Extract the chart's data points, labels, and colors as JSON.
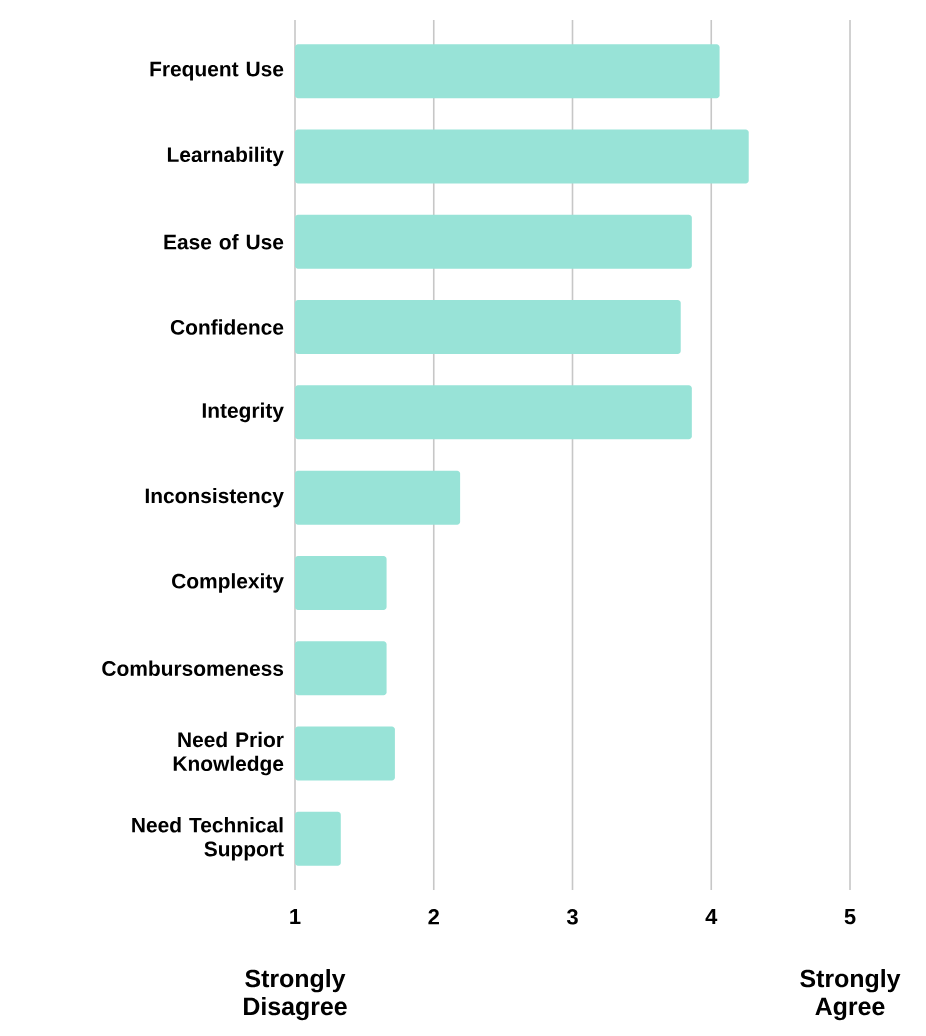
{
  "chart_data": {
    "type": "bar",
    "orientation": "horizontal",
    "categories": [
      "Frequent Use",
      "Learnability",
      "Ease of Use",
      "Confidence",
      "Integrity",
      "Inconsistency",
      "Complexity",
      "Combursomeness",
      "Need Prior Knowledge",
      "Need Technical Support"
    ],
    "values": [
      4.06,
      4.27,
      3.86,
      3.78,
      3.86,
      2.19,
      1.66,
      1.66,
      1.72,
      1.33
    ],
    "color": "#98e3d7",
    "xlim": [
      1,
      5
    ],
    "xticks": [
      1,
      2,
      3,
      4,
      5
    ],
    "grid": "x",
    "annotations": [
      "Strongly Disagree",
      "Strongly Agree"
    ]
  }
}
